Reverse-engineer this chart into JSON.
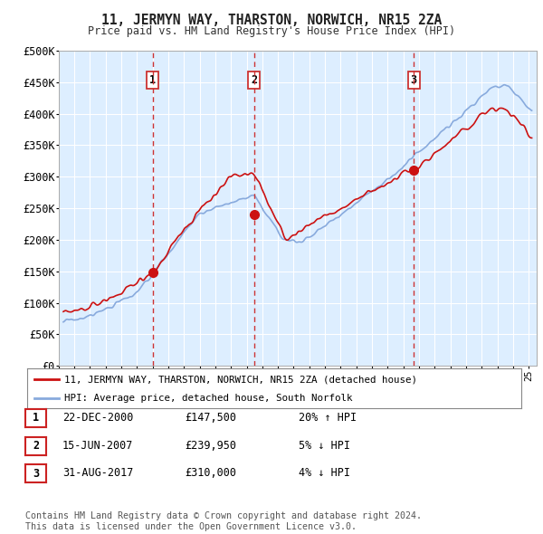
{
  "title": "11, JERMYN WAY, THARSTON, NORWICH, NR15 2ZA",
  "subtitle": "Price paid vs. HM Land Registry's House Price Index (HPI)",
  "ylabel_ticks": [
    "£0",
    "£50K",
    "£100K",
    "£150K",
    "£200K",
    "£250K",
    "£300K",
    "£350K",
    "£400K",
    "£450K",
    "£500K"
  ],
  "ylim": [
    0,
    500000
  ],
  "ytick_vals": [
    0,
    50000,
    100000,
    150000,
    200000,
    250000,
    300000,
    350000,
    400000,
    450000,
    500000
  ],
  "sale_year_floats": [
    2001.0,
    2007.46,
    2017.67
  ],
  "sale_prices": [
    147500,
    239950,
    310000
  ],
  "sale_labels": [
    "1",
    "2",
    "3"
  ],
  "legend_line1": "11, JERMYN WAY, THARSTON, NORWICH, NR15 2ZA (detached house)",
  "legend_line2": "HPI: Average price, detached house, South Norfolk",
  "table_rows": [
    [
      "1",
      "22-DEC-2000",
      "£147,500",
      "20% ↑ HPI"
    ],
    [
      "2",
      "15-JUN-2007",
      "£239,950",
      "5% ↓ HPI"
    ],
    [
      "3",
      "31-AUG-2017",
      "£310,000",
      "4% ↓ HPI"
    ]
  ],
  "footnote": "Contains HM Land Registry data © Crown copyright and database right 2024.\nThis data is licensed under the Open Government Licence v3.0.",
  "bg_color": "#ffffff",
  "chart_bg_color": "#ddeeff",
  "grid_color": "#aabbcc",
  "red_color": "#cc1111",
  "blue_color": "#88aadd",
  "dashed_color": "#cc3333",
  "label_box_color": "#cc3333"
}
